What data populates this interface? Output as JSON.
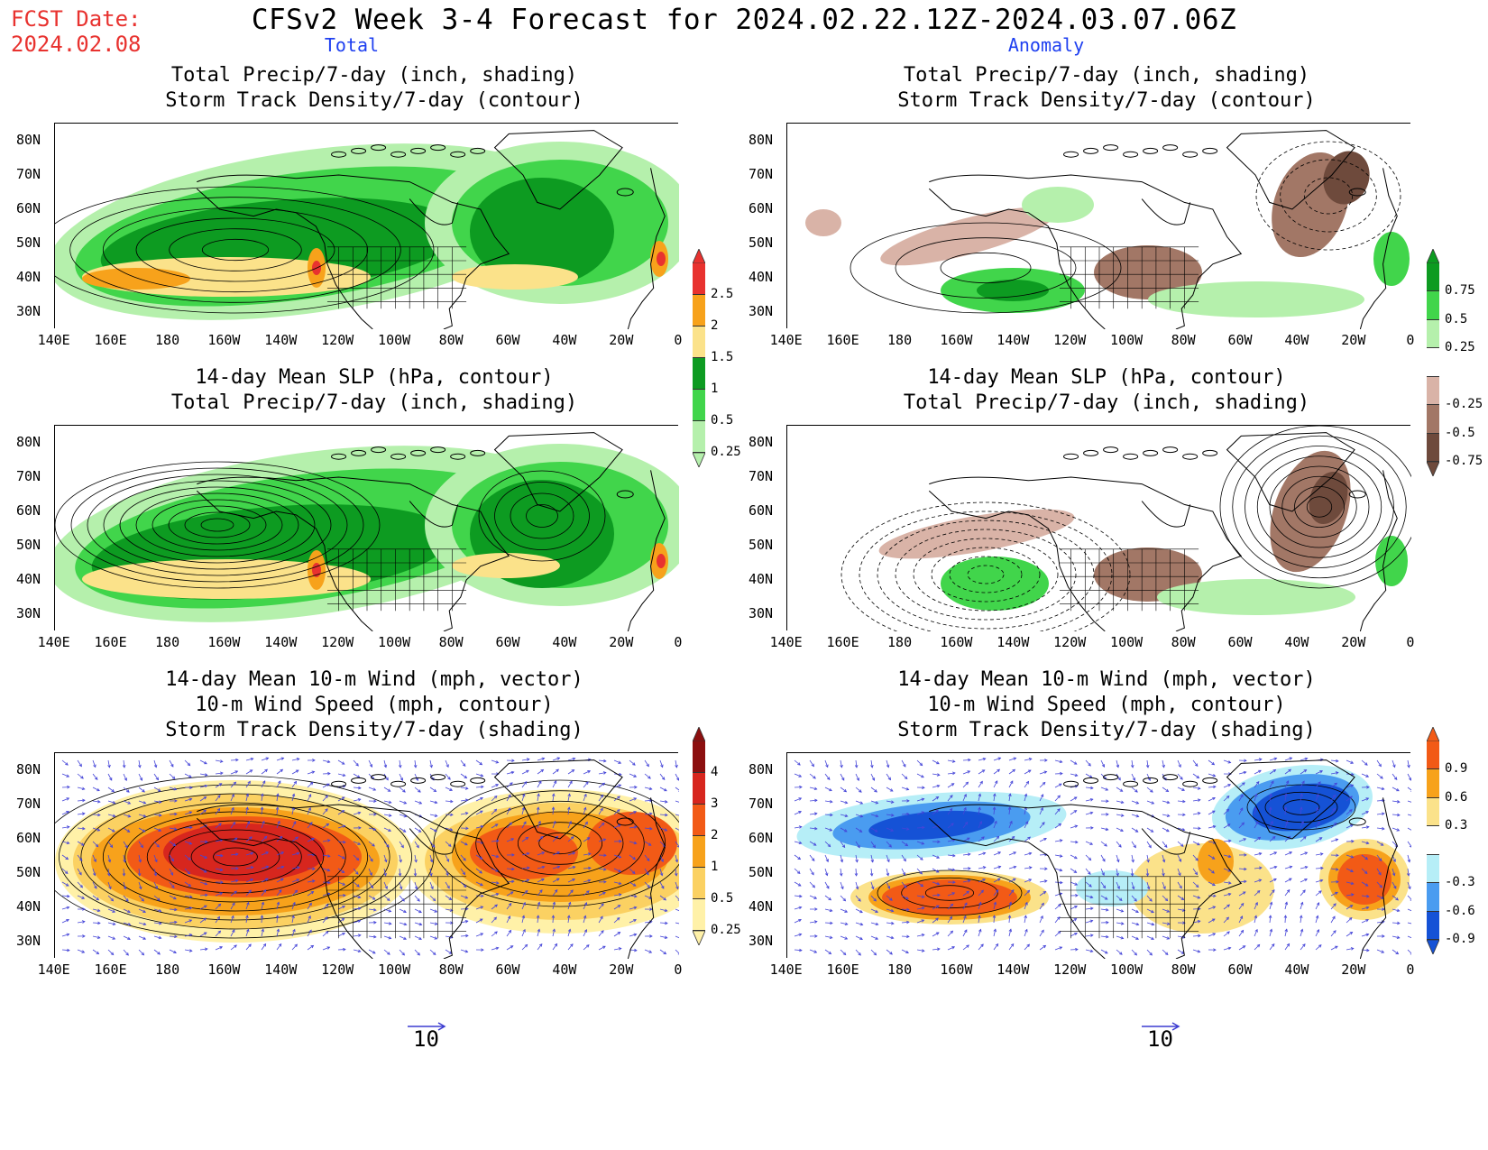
{
  "header": {
    "fcst_line1": "FCST Date:",
    "fcst_line2": "2024.02.08",
    "title": "CFSv2 Week 3-4 Forecast for 2024.02.22.12Z-2024.03.07.06Z",
    "left_label": "Total",
    "right_label": "Anomaly"
  },
  "panels": {
    "p1": {
      "title1": "Total Precip/7-day (inch, shading)",
      "title2": "Storm Track Density/7-day (contour)"
    },
    "p2": {
      "title1": "Total Precip/7-day (inch, shading)",
      "title2": "Storm Track Density/7-day (contour)"
    },
    "p3": {
      "title1": "14-day Mean SLP (hPa, contour)",
      "title2": "Total Precip/7-day (inch, shading)"
    },
    "p4": {
      "title1": "14-day Mean SLP (hPa, contour)",
      "title2": "Total Precip/7-day (inch, shading)"
    },
    "p5": {
      "title1": "14-day Mean 10-m Wind (mph, vector)",
      "title2": "10-m Wind Speed (mph, contour)",
      "title3": "Storm Track Density/7-day (shading)"
    },
    "p6": {
      "title1": "14-day Mean 10-m Wind (mph, vector)",
      "title2": "10-m Wind Speed (mph, contour)",
      "title3": "Storm Track Density/7-day (shading)"
    }
  },
  "axes": {
    "lon_ticks": [
      "140E",
      "160E",
      "180",
      "160W",
      "140W",
      "120W",
      "100W",
      "80W",
      "60W",
      "40W",
      "20W",
      "0"
    ],
    "lat_ticks": [
      "80N",
      "70N",
      "60N",
      "50N",
      "40N",
      "30N"
    ]
  },
  "colorbars": {
    "precip": {
      "labels": [
        "2.5",
        "2",
        "1.5",
        "1",
        "0.5",
        "0.25"
      ],
      "colors": [
        "#e8322f",
        "#f7a21b",
        "#fbe28a",
        "#0d9b21",
        "#41d54b",
        "#b5f0ac"
      ]
    },
    "precip_anom": {
      "labels": [
        "0.75",
        "0.5",
        "0.25",
        "-0.25",
        "-0.5",
        "-0.75"
      ],
      "colors": [
        "#0d9b21",
        "#41d54b",
        "#b5f0ac",
        "#ffffff",
        "#d9b3a7",
        "#a27766",
        "#6e4a3c"
      ]
    },
    "storm": {
      "labels": [
        "4",
        "3",
        "2",
        "1",
        "0.5",
        "0.25"
      ],
      "colors": [
        "#8c0f0f",
        "#d7261e",
        "#f25a16",
        "#f7a21b",
        "#fbd162",
        "#fff1a8"
      ]
    },
    "storm_anom": {
      "labels": [
        "0.9",
        "0.6",
        "0.3",
        "-0.3",
        "-0.6",
        "-0.9"
      ],
      "colors": [
        "#f25a16",
        "#f7a21b",
        "#fbe28a",
        "#ffffff",
        "#b6eef7",
        "#4a9cf0",
        "#1552d6"
      ]
    }
  },
  "reference_vector": {
    "left": "10",
    "right": "10"
  }
}
